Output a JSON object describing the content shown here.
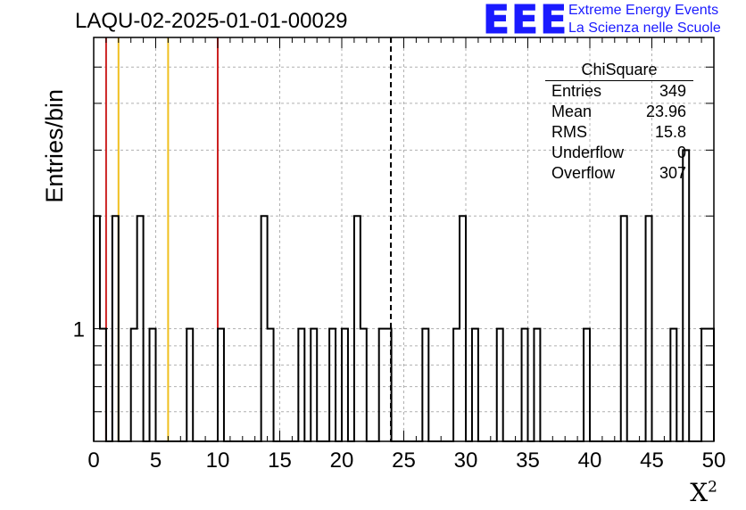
{
  "title": "LAQU-02-2025-01-01-00029",
  "logo": {
    "letters": "EEE",
    "line1": "Extreme Energy Events",
    "line2": "La Scienza nelle Scuole",
    "color": "#1a1aff"
  },
  "stats": {
    "title": "ChiSquare",
    "rows": [
      {
        "label": "Entries",
        "value": "349"
      },
      {
        "label": "Mean",
        "value": "23.96"
      },
      {
        "label": "RMS",
        "value": "15.8"
      },
      {
        "label": "Underflow",
        "value": "0"
      },
      {
        "label": "Overflow",
        "value": "307"
      }
    ]
  },
  "chart_data": {
    "type": "histogram",
    "title": "LAQU-02-2025-01-01-00029",
    "xlabel": "X",
    "xlabel_superscript": "2",
    "ylabel": "Entries/bin",
    "y_scale": "log",
    "xlim": [
      0,
      50
    ],
    "ylim": [
      0.5,
      6
    ],
    "bin_width": 0.5,
    "x_ticks": [
      "0",
      "5",
      "10",
      "15",
      "20",
      "25",
      "30",
      "35",
      "40",
      "45",
      "50"
    ],
    "y_tick_labels": [
      "1"
    ],
    "grid": true,
    "bins_nonzero": [
      {
        "x": 0,
        "count": 2
      },
      {
        "x": 0.5,
        "count": 1
      },
      {
        "x": 1.5,
        "count": 2
      },
      {
        "x": 3,
        "count": 1
      },
      {
        "x": 3.5,
        "count": 2
      },
      {
        "x": 4.5,
        "count": 1
      },
      {
        "x": 7.5,
        "count": 1
      },
      {
        "x": 10,
        "count": 1
      },
      {
        "x": 13.5,
        "count": 2
      },
      {
        "x": 14,
        "count": 1
      },
      {
        "x": 16.5,
        "count": 1
      },
      {
        "x": 17.5,
        "count": 1
      },
      {
        "x": 19,
        "count": 1
      },
      {
        "x": 20,
        "count": 1
      },
      {
        "x": 21,
        "count": 2
      },
      {
        "x": 21.5,
        "count": 1
      },
      {
        "x": 23,
        "count": 1
      },
      {
        "x": 23.5,
        "count": 1
      },
      {
        "x": 26.5,
        "count": 1
      },
      {
        "x": 29,
        "count": 1
      },
      {
        "x": 29.5,
        "count": 2
      },
      {
        "x": 30.5,
        "count": 1
      },
      {
        "x": 32.5,
        "count": 1
      },
      {
        "x": 34.5,
        "count": 1
      },
      {
        "x": 35.5,
        "count": 1
      },
      {
        "x": 39.5,
        "count": 1
      },
      {
        "x": 42.5,
        "count": 2
      },
      {
        "x": 44.5,
        "count": 2
      },
      {
        "x": 46.5,
        "count": 1
      },
      {
        "x": 47.5,
        "count": 3
      },
      {
        "x": 49,
        "count": 1
      },
      {
        "x": 49.5,
        "count": 1
      }
    ],
    "reference_lines": [
      {
        "x": 1,
        "color": "#cc2222",
        "style": "solid"
      },
      {
        "x": 2,
        "color": "#f0c020",
        "style": "solid"
      },
      {
        "x": 6,
        "color": "#f0c020",
        "style": "solid"
      },
      {
        "x": 10,
        "color": "#cc2222",
        "style": "solid"
      },
      {
        "x": 23.96,
        "color": "#000000",
        "style": "dashed"
      }
    ]
  }
}
